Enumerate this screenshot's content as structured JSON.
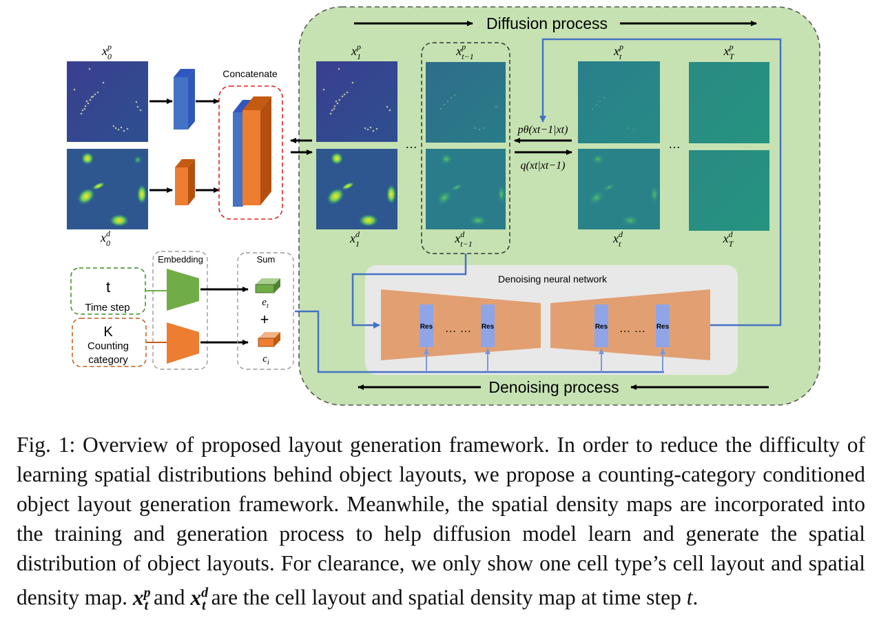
{
  "diagram": {
    "diffusion_process_label": "Diffusion process",
    "denoising_process_label": "Denoising process",
    "concatenate_label": "Concatenate",
    "embedding_label": "Embedding",
    "sum_label": "Sum",
    "denoising_network_label": "Denoising neural network",
    "res_label": "Res",
    "dots": "…",
    "double_dots": "… …",
    "plus": "+",
    "time_step": {
      "symbol": "t",
      "label": "Time step"
    },
    "counting": {
      "symbol": "K",
      "label_line1": "Counting",
      "label_line2": "category"
    },
    "embed_outputs": {
      "e": "e",
      "e_sub": "t",
      "c": "c",
      "c_sub": "i"
    },
    "reverse_formula": "pθ(xt−1|xt)",
    "forward_formula": "q(xt|xt−1)",
    "map_labels": {
      "x0p": {
        "base": "x",
        "sup": "p",
        "sub": "0"
      },
      "x0d": {
        "base": "x",
        "sup": "d",
        "sub": "0"
      },
      "x1p": {
        "base": "x",
        "sup": "p",
        "sub": "1"
      },
      "x1d": {
        "base": "x",
        "sup": "d",
        "sub": "1"
      },
      "xt1p": {
        "base": "x",
        "sup": "p",
        "sub": "t−1"
      },
      "xt1d": {
        "base": "x",
        "sup": "d",
        "sub": "t−1"
      },
      "xtp": {
        "base": "x",
        "sup": "p",
        "sub": "t"
      },
      "xtd": {
        "base": "x",
        "sup": "d",
        "sub": "t"
      },
      "xTp": {
        "base": "x",
        "sup": "p",
        "sub": "T"
      },
      "xTd": {
        "base": "x",
        "sup": "d",
        "sub": "T"
      }
    },
    "colors": {
      "panel_green": "#c6e2b2",
      "net_gray": "#e8e8e8",
      "orange": "#e2a072",
      "res_blue": "#8fa5e8",
      "flow_blue": "#4472c4",
      "green_box": "#3a8a1e",
      "orange_box": "#c55a11",
      "red_dash": "#e02020"
    }
  },
  "caption": {
    "fig_label": "Fig. 1:",
    "part1": "Overview of proposed layout generation framework. In order to reduce the difficulty of learning spatial distributions behind object layouts, we propose a counting-category conditioned object layout generation framework. Meanwhile, the spatial density maps are incorporated into the training and generation pro­cess to help diffusion model learn and generate the spatial distribution of object layouts. For clearance, we only show one cell type’s cell layout and spatial den­sity map.",
    "sym1": "x",
    "sym1_sup": "p",
    "sym1_sub": "t",
    "and": "and",
    "sym2": "x",
    "sym2_sup": "d",
    "sym2_sub": "t",
    "part2": "are the cell layout and spatial density map at time step",
    "t": "t",
    "end": "."
  }
}
